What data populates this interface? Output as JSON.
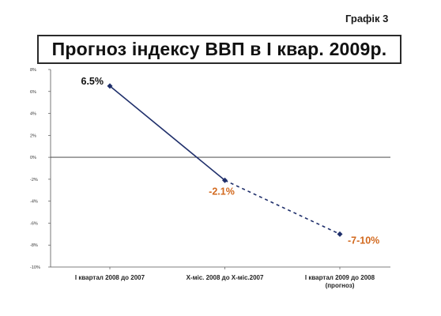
{
  "figure_label": "Графік 3",
  "chart_data": {
    "type": "line",
    "title": "Прогноз індексу ВВП в I квар. 2009р.",
    "xlabel": "",
    "ylabel": "",
    "categories": [
      [
        "I квартал 2008 до 2007"
      ],
      [
        "X-міс. 2008 до X-міс.2007"
      ],
      [
        "I квартал 2009 до 2008",
        "(прогноз)"
      ]
    ],
    "ylim": [
      -10,
      8
    ],
    "yticks": [
      -10,
      -8,
      -6,
      -4,
      -2,
      0,
      2,
      4,
      6,
      8
    ],
    "ytick_labels": [
      "-10%",
      "-8%",
      "-6%",
      "-4%",
      "-2%",
      "0%",
      "2%",
      "4%",
      "6%",
      "8%"
    ],
    "series": [
      {
        "values": [
          6.5,
          -2.1,
          -7
        ],
        "segment_styles": [
          "solid",
          "dashed"
        ],
        "point_labels": [
          "6.5%",
          "-2.1%",
          "-7-10%"
        ],
        "label_colors": [
          "#111111",
          "#d2691e",
          "#d2691e"
        ]
      }
    ],
    "line_color": "#1f2f6b",
    "grid": false,
    "legend": "none"
  }
}
